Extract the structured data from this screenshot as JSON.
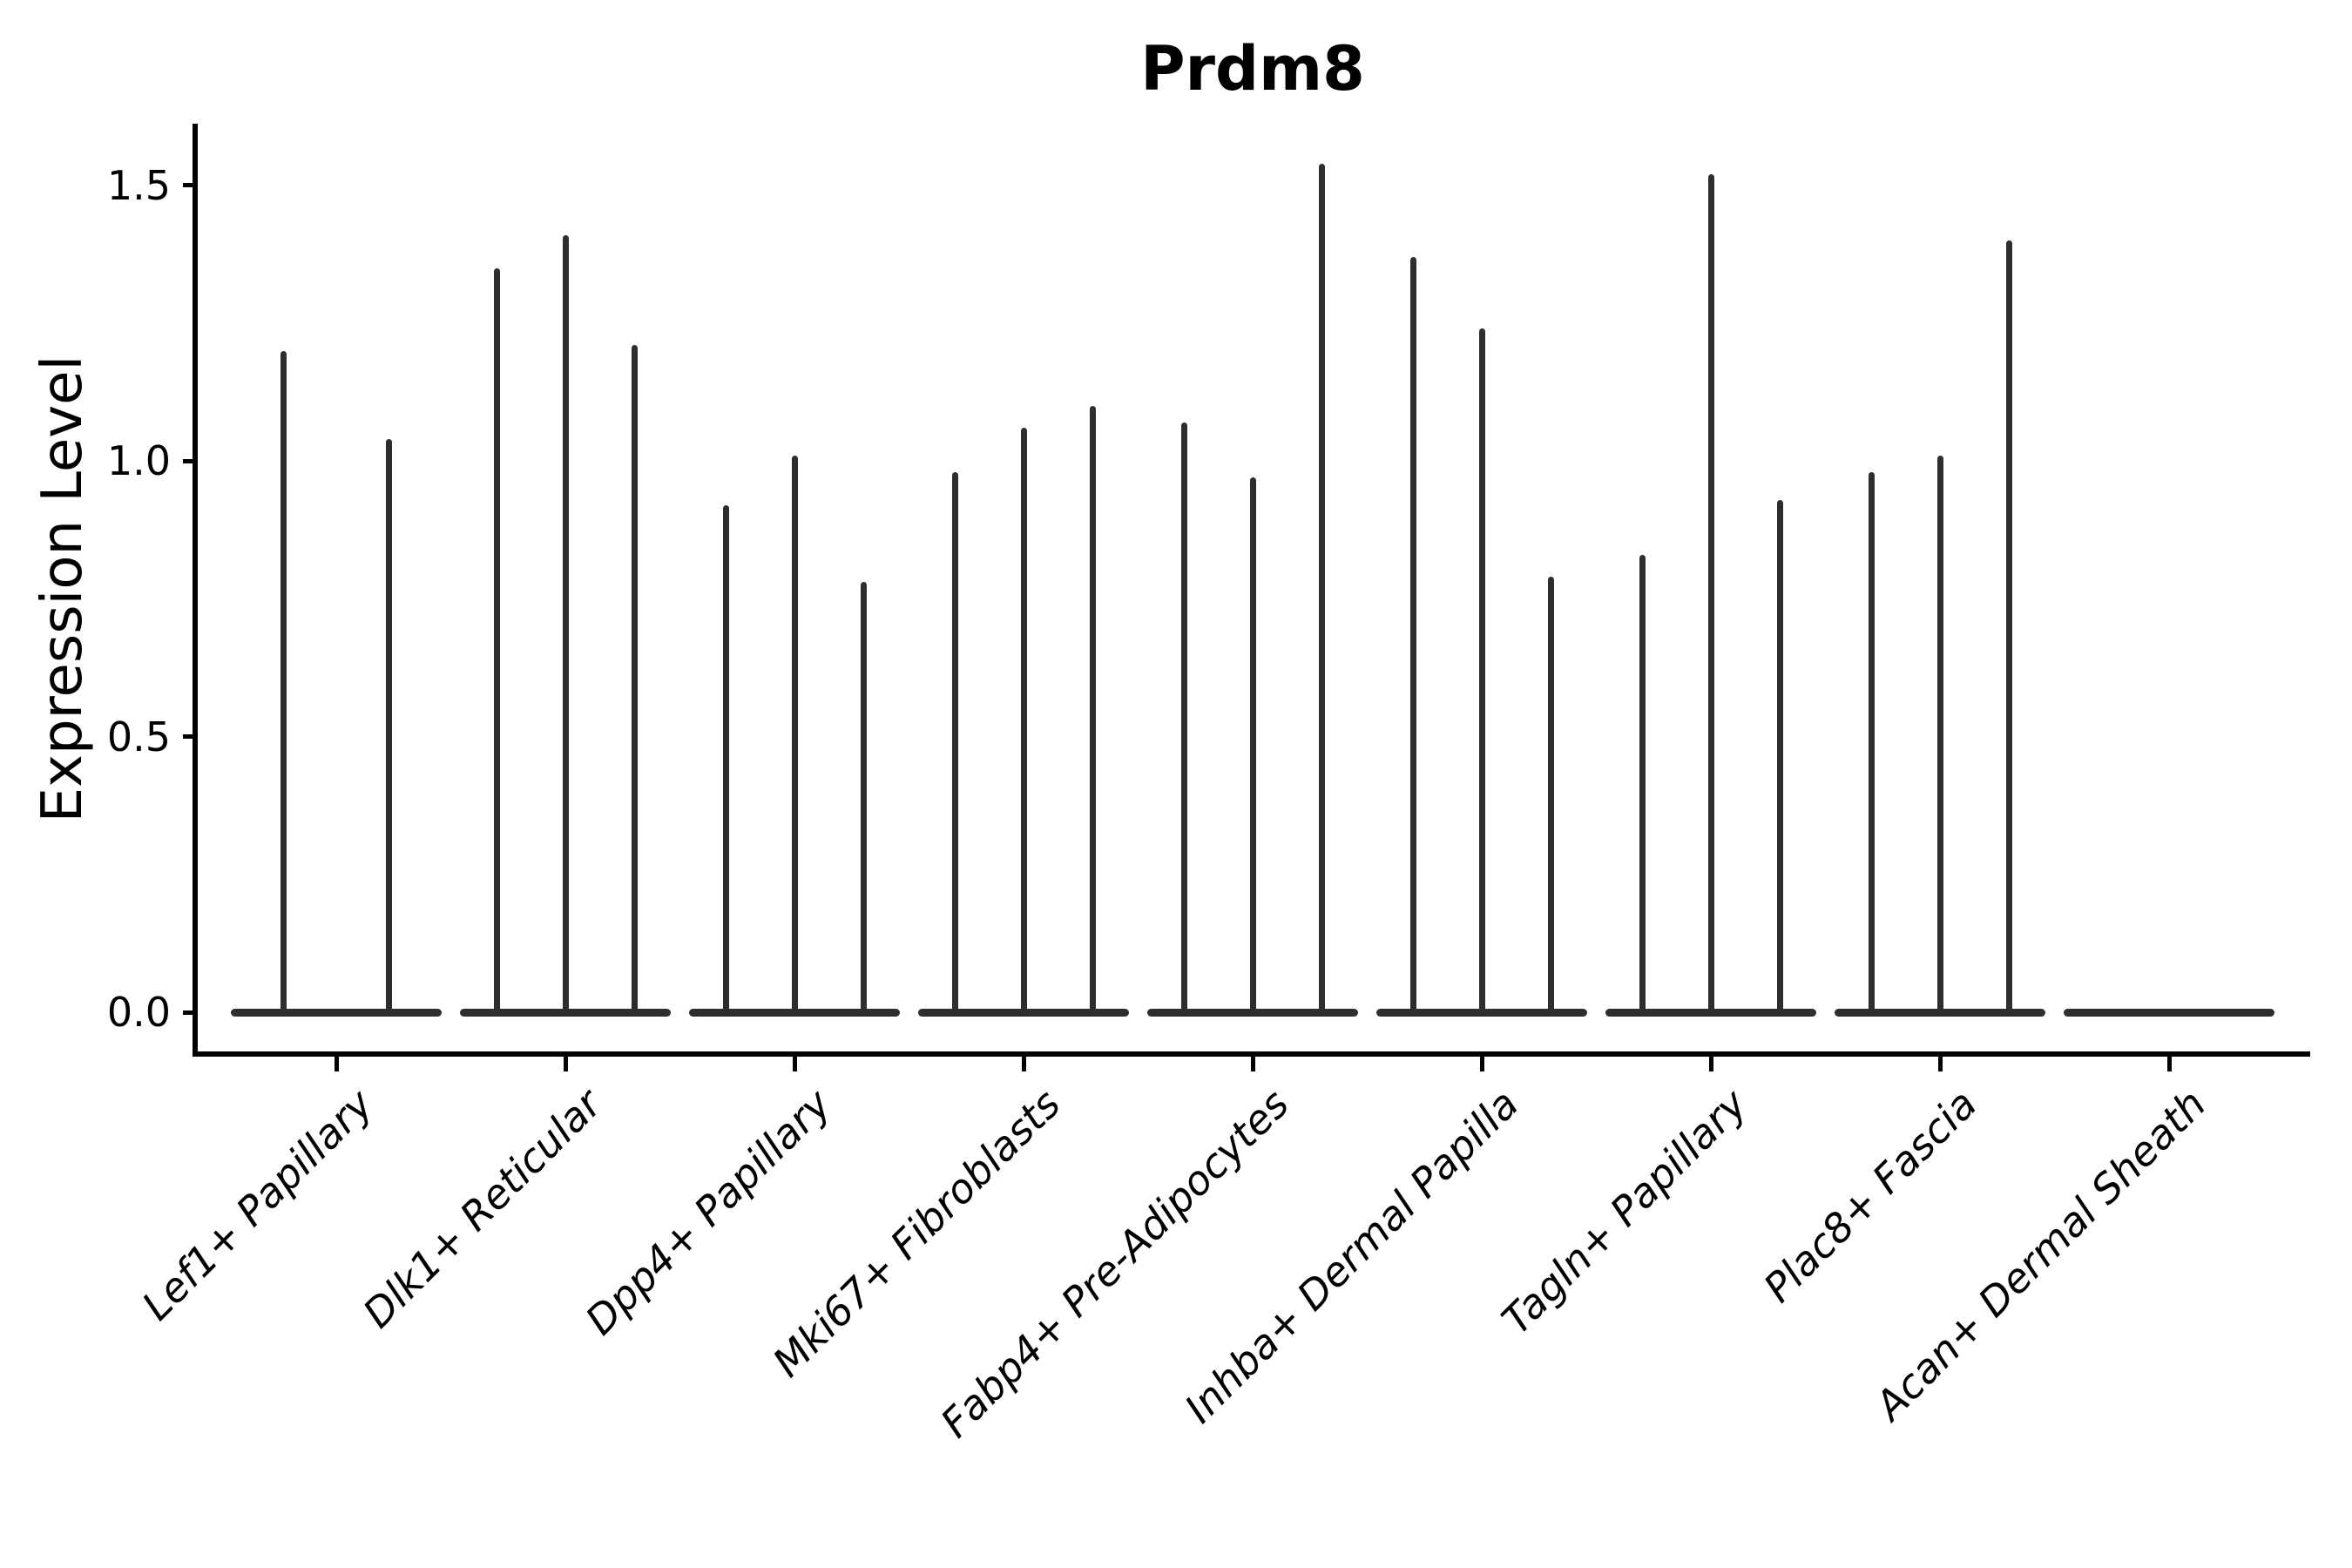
{
  "title": "Prdm8",
  "ylabel": "Expression Level",
  "chart_data": {
    "type": "violin",
    "title": "Prdm8",
    "xlabel": "",
    "ylabel": "Expression Level",
    "ylim": [
      0,
      1.61
    ],
    "yticks": [
      0.0,
      0.5,
      1.0,
      1.5
    ],
    "ytick_labels": [
      "0.0",
      "0.5",
      "1.0",
      "1.5"
    ],
    "grid": false,
    "legend": false,
    "note": "Sparse single-cell expression: each violin collapses to a flat base at 0 with a thin vertical tail reaching the max expression value.",
    "categories": [
      "Lef1+ Papillary",
      "Dlk1+ Reticular",
      "Dpp4+ Papillary",
      "Mki67+ Fibroblasts",
      "Fabp4+ Pre-Adipocytes",
      "Inhba+ Dermal Papilla",
      "Tagln+ Papillary",
      "Plac8+ Fascia",
      "Acan+ Dermal Sheath"
    ],
    "series": [
      {
        "category": "Lef1+ Papillary",
        "violin_peaks": [
          1.2,
          1.04
        ]
      },
      {
        "category": "Dlk1+ Reticular",
        "violin_peaks": [
          1.35,
          1.41,
          1.21
        ]
      },
      {
        "category": "Dpp4+ Papillary",
        "violin_peaks": [
          0.92,
          1.01,
          0.78
        ]
      },
      {
        "category": "Mki67+ Fibroblasts",
        "violin_peaks": [
          0.98,
          1.06,
          1.1
        ]
      },
      {
        "category": "Fabp4+ Pre-Adipocytes",
        "violin_peaks": [
          1.07,
          0.97,
          1.54
        ]
      },
      {
        "category": "Inhba+ Dermal Papilla",
        "violin_peaks": [
          1.37,
          1.24,
          0.79
        ]
      },
      {
        "category": "Tagln+ Papillary",
        "violin_peaks": [
          0.83,
          1.52,
          0.93
        ]
      },
      {
        "category": "Plac8+ Fascia",
        "violin_peaks": [
          0.98,
          1.01,
          1.4
        ]
      },
      {
        "category": "Acan+ Dermal Sheath",
        "violin_peaks": []
      }
    ]
  }
}
